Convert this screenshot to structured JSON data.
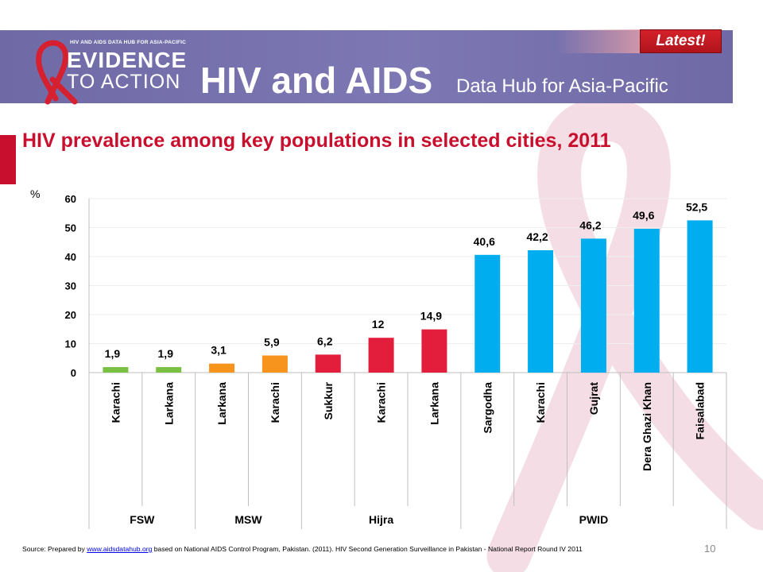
{
  "header": {
    "logo_tagline": "HIV AND AIDS DATA HUB FOR ASIA-PACIFIC",
    "logo_line1": "EVIDENCE",
    "logo_line2": "TO ACTION",
    "site_title": "HIV and AIDS",
    "site_subtitle": "Data Hub for Asia-Pacific",
    "latest_label": "Latest!"
  },
  "colors": {
    "banner": "#7b76b1",
    "title_red": "#c8102e",
    "fsw_green": "#7ac143",
    "msw_orange": "#f7941d",
    "hijra_red": "#e21e3c",
    "pwid_blue": "#00aeef"
  },
  "chart_data": {
    "type": "bar",
    "title": "HIV prevalence among key populations in selected cities, 2011",
    "ylabel": "%",
    "ylim": [
      0,
      60
    ],
    "yticks": [
      "0",
      "10",
      "20",
      "30",
      "40",
      "50",
      "60"
    ],
    "categories": [
      "Karachi",
      "Larkana",
      "Larkana",
      "Karachi",
      "Sukkur",
      "Karachi",
      "Larkana",
      "Sargodha",
      "Karachi",
      "Gujrat",
      "Dera Ghazi Khan",
      "Faisalabad"
    ],
    "values": [
      1.9,
      1.9,
      3.1,
      5.9,
      6.2,
      12,
      14.9,
      40.6,
      42.2,
      46.2,
      49.6,
      52.5
    ],
    "value_labels": [
      "1,9",
      "1,9",
      "3,1",
      "5,9",
      "6,2",
      "12",
      "14,9",
      "40,6",
      "42,2",
      "46,2",
      "49,6",
      "52,5"
    ],
    "groups": [
      {
        "name": "FSW",
        "start": 0,
        "count": 2,
        "color": "#7ac143"
      },
      {
        "name": "MSW",
        "start": 2,
        "count": 2,
        "color": "#f7941d"
      },
      {
        "name": "Hijra",
        "start": 4,
        "count": 3,
        "color": "#e21e3c"
      },
      {
        "name": "PWID",
        "start": 7,
        "count": 5,
        "color": "#00aeef"
      }
    ]
  },
  "footer": {
    "source_prefix": "Source: Prepared by",
    "source_link": "www.aidsdatahub.org",
    "source_rest": "based on National AIDS Control Program, Pakistan. (2011). HIV Second Generation Surveillance in Pakistan - National Report Round IV 2011",
    "page_number": "10"
  }
}
